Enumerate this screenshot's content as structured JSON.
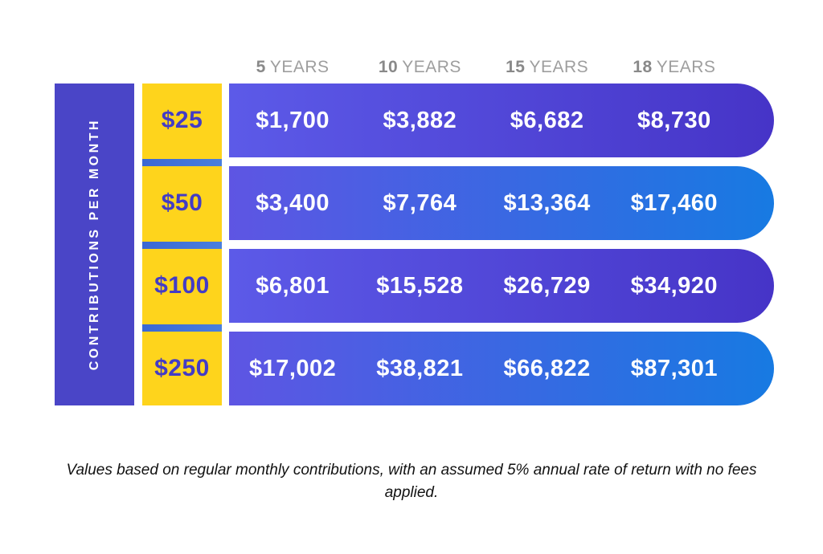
{
  "axis": {
    "row_label": "CONTRIBUTIONS PER MONTH"
  },
  "columns": [
    {
      "num": "5",
      "unit": "YEARS"
    },
    {
      "num": "10",
      "unit": "YEARS"
    },
    {
      "num": "15",
      "unit": "YEARS"
    },
    {
      "num": "18",
      "unit": "YEARS"
    }
  ],
  "rows": [
    {
      "label": "$25",
      "values": [
        "$1,700",
        "$3,882",
        "$6,682",
        "$8,730"
      ]
    },
    {
      "label": "$50",
      "values": [
        "$3,400",
        "$7,764",
        "$13,364",
        "$17,460"
      ]
    },
    {
      "label": "$100",
      "values": [
        "$6,801",
        "$15,528",
        "$26,729",
        "$34,920"
      ]
    },
    {
      "label": "$250",
      "values": [
        "$17,002",
        "$38,821",
        "$66,822",
        "$87,301"
      ]
    }
  ],
  "footnote": "Values based on regular monthly contributions, with an assumed 5% annual rate of return with no fees applied.",
  "colors": {
    "sidebar_purple": "#4a45c7",
    "contribution_yellow": "#fed41c",
    "contribution_text": "#433cc5",
    "bar_gradient_odd_start": "#5c5ae8",
    "bar_gradient_odd_end": "#4634c7",
    "bar_gradient_even_start": "#5e55e3",
    "bar_gradient_even_end": "#177ae2",
    "divider_strip_start": "#3a67d4",
    "divider_strip_end": "#4a7fdd",
    "header_number_gray": "#898989",
    "header_unit_gray": "#9e9e9e",
    "value_text": "#ffffff"
  },
  "chart_data": {
    "type": "table",
    "title": "",
    "row_axis_label": "CONTRIBUTIONS PER MONTH",
    "categories": [
      "5 YEARS",
      "10 YEARS",
      "15 YEARS",
      "18 YEARS"
    ],
    "series": [
      {
        "name": "$25",
        "values": [
          1700,
          3882,
          6682,
          8730
        ]
      },
      {
        "name": "$50",
        "values": [
          3400,
          7764,
          13364,
          17460
        ]
      },
      {
        "name": "$100",
        "values": [
          6801,
          15528,
          26729,
          34920
        ]
      },
      {
        "name": "$250",
        "values": [
          17002,
          38821,
          66822,
          87301
        ]
      }
    ],
    "annotation": "Values based on regular monthly contributions, with an assumed 5% annual rate of return with no fees applied."
  }
}
